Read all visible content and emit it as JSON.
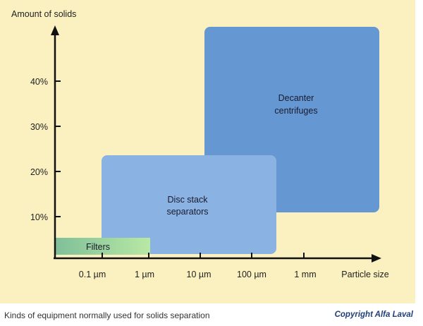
{
  "diagram": {
    "y_axis_title": "Amount of solids",
    "x_axis_title": "Particle size",
    "y_ticks": [
      "10%",
      "20%",
      "30%",
      "40%"
    ],
    "x_ticks": [
      "0.1 µm",
      "1 µm",
      "10 µm",
      "100 µm",
      "1 mm"
    ],
    "regions": {
      "decanter": {
        "line1": "Decanter",
        "line2": "centrifuges",
        "color": "#6598d2"
      },
      "disc_stack": {
        "line1": "Disc stack",
        "line2": "separators",
        "color": "#8ab2e2"
      },
      "filters": {
        "label": "Filters",
        "color_start": "#7fbf99",
        "color_end": "#b8e8a4"
      }
    }
  },
  "footer": {
    "caption": "Kinds of equipment normally used for solids separation",
    "copyright": "Copyright Alfa Laval"
  },
  "colors": {
    "background": "#fbf0c0",
    "axis": "#111111"
  }
}
